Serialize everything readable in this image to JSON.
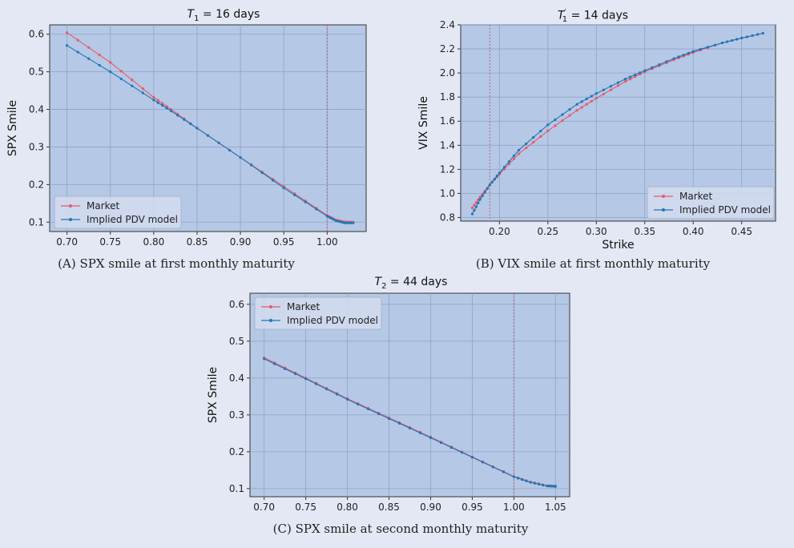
{
  "chart_data": [
    {
      "type": "line",
      "id": "A",
      "title": {
        "symbol": "T",
        "subscript": "1",
        "superscript": "",
        "text": " = 16 days"
      },
      "xlabel": "",
      "ylabel": "SPX Smile",
      "xlim": [
        0.68,
        1.045
      ],
      "ylim": [
        0.075,
        0.625
      ],
      "xticks": [
        "0.70",
        "0.75",
        "0.80",
        "0.85",
        "0.90",
        "0.95",
        "1.00"
      ],
      "yticks": [
        "0.1",
        "0.2",
        "0.3",
        "0.4",
        "0.5",
        "0.6"
      ],
      "vline": 1.0,
      "grid": true,
      "legend": "lower-left",
      "caption": {
        "tag": "(A)",
        "text": "SPX smile at first monthly maturity"
      },
      "series": [
        {
          "name": "Market",
          "color": "#e8596a",
          "x": [
            0.7,
            0.75,
            0.8,
            0.82,
            0.85,
            0.9,
            0.95,
            1.0,
            1.01,
            1.02,
            1.03
          ],
          "y": [
            0.604,
            0.525,
            0.432,
            0.4,
            0.35,
            0.272,
            0.195,
            0.118,
            0.106,
            0.101,
            0.1
          ]
        },
        {
          "name": "Implied PDV model",
          "color": "#1f77b4",
          "x": [
            0.7,
            0.75,
            0.8,
            0.82,
            0.85,
            0.9,
            0.95,
            1.0,
            1.01,
            1.02,
            1.03
          ],
          "y": [
            0.57,
            0.5,
            0.425,
            0.396,
            0.35,
            0.272,
            0.191,
            0.116,
            0.104,
            0.098,
            0.098
          ]
        }
      ]
    },
    {
      "type": "line",
      "id": "B",
      "title": {
        "symbol": "T",
        "subscript": "1",
        "superscript": "′",
        "text": " = 14 days"
      },
      "xlabel": "Strike",
      "ylabel": "VIX Smile",
      "xlim": [
        0.16,
        0.485
      ],
      "ylim": [
        0.77,
        2.4
      ],
      "xticks": [
        "0.20",
        "0.25",
        "0.30",
        "0.35",
        "0.40",
        "0.45"
      ],
      "yticks": [
        "0.8",
        "1.0",
        "1.2",
        "1.4",
        "1.6",
        "1.8",
        "2.0",
        "2.2",
        "2.4"
      ],
      "vline": 0.19,
      "grid": true,
      "legend": "lower-right",
      "caption": {
        "tag": "(B)",
        "text": "VIX smile at first monthly maturity"
      },
      "series": [
        {
          "name": "Market",
          "color": "#e8596a",
          "x": [
            0.172,
            0.18,
            0.19,
            0.2,
            0.22,
            0.25,
            0.28,
            0.3,
            0.33,
            0.35,
            0.38,
            0.4,
            0.43,
            0.45,
            0.472
          ],
          "y": [
            0.88,
            0.97,
            1.07,
            1.16,
            1.33,
            1.52,
            1.69,
            1.79,
            1.93,
            2.01,
            2.11,
            2.17,
            2.25,
            2.29,
            2.33
          ]
        },
        {
          "name": "Implied PDV model",
          "color": "#1f77b4",
          "x": [
            0.172,
            0.18,
            0.19,
            0.2,
            0.22,
            0.25,
            0.28,
            0.3,
            0.33,
            0.35,
            0.38,
            0.4,
            0.43,
            0.45,
            0.472
          ],
          "y": [
            0.83,
            0.95,
            1.07,
            1.17,
            1.36,
            1.57,
            1.74,
            1.83,
            1.95,
            2.02,
            2.12,
            2.18,
            2.25,
            2.29,
            2.33
          ]
        }
      ]
    },
    {
      "type": "line",
      "id": "C",
      "title": {
        "symbol": "T",
        "subscript": "2",
        "superscript": "",
        "text": " = 44 days"
      },
      "xlabel": "",
      "ylabel": "SPX Smile",
      "xlim": [
        0.683,
        1.067
      ],
      "ylim": [
        0.078,
        0.63
      ],
      "xticks": [
        "0.70",
        "0.75",
        "0.80",
        "0.85",
        "0.90",
        "0.95",
        "1.00",
        "1.05"
      ],
      "yticks": [
        "0.1",
        "0.2",
        "0.3",
        "0.4",
        "0.5",
        "0.6"
      ],
      "vline": 1.0,
      "grid": true,
      "legend": "upper-left",
      "caption": {
        "tag": "(C)",
        "text": "SPX smile at second monthly maturity"
      },
      "series": [
        {
          "name": "Market",
          "color": "#e8596a",
          "x": [
            0.7,
            0.75,
            0.8,
            0.85,
            0.9,
            0.95,
            1.0,
            1.02,
            1.04,
            1.05
          ],
          "y": [
            0.455,
            0.4,
            0.344,
            0.292,
            0.24,
            0.186,
            0.133,
            0.118,
            0.108,
            0.107
          ]
        },
        {
          "name": "Implied PDV model",
          "color": "#1f77b4",
          "x": [
            0.7,
            0.75,
            0.8,
            0.85,
            0.9,
            0.95,
            1.0,
            1.02,
            1.04,
            1.05
          ],
          "y": [
            0.452,
            0.398,
            0.342,
            0.29,
            0.238,
            0.185,
            0.132,
            0.117,
            0.107,
            0.106
          ]
        }
      ]
    }
  ],
  "colors": {
    "plot_bg": "#b5c8e6",
    "grid": "#8fa4c8",
    "vline": "#c05a7a",
    "page_bg": "#e3e8f4"
  }
}
